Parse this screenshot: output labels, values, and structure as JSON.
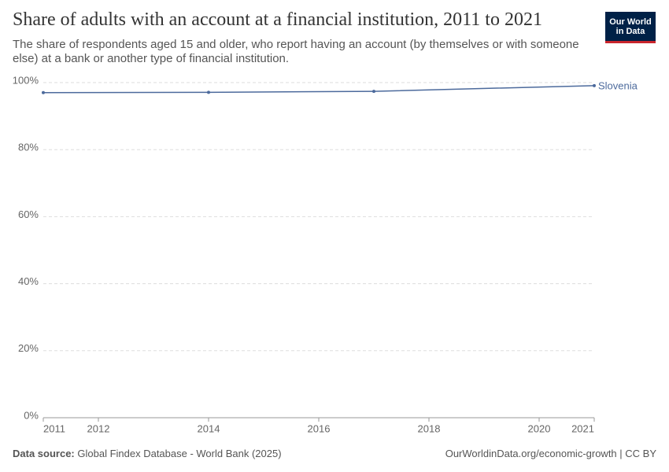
{
  "chart_data": {
    "type": "line",
    "title": "Share of adults with an account at a financial institution, 2011 to 2021",
    "subtitle": "The share of respondents aged 15 and older, who report having an account (by themselves or with someone else) at a bank or another type of financial institution.",
    "logo": [
      "Our World",
      "in Data"
    ],
    "source_label": "Data source:",
    "source": "Global Findex Database - World Bank (2025)",
    "credit": "OurWorldinData.org/economic-growth | CC BY",
    "x": [
      2011,
      2014,
      2017,
      2021
    ],
    "series": [
      {
        "name": "Slovenia",
        "color": "#4c6a9c",
        "values": [
          97,
          97.1,
          97.4,
          99.1
        ]
      }
    ],
    "xlim": [
      2011,
      2021
    ],
    "xticks": [
      2011,
      2012,
      2014,
      2016,
      2018,
      2020,
      2021
    ],
    "ylim": [
      0,
      100
    ],
    "yticks": [
      {
        "value": 0,
        "label": "0%"
      },
      {
        "value": 20,
        "label": "20%"
      },
      {
        "value": 40,
        "label": "40%"
      },
      {
        "value": 60,
        "label": "60%"
      },
      {
        "value": 80,
        "label": "80%"
      },
      {
        "value": 100,
        "label": "100%"
      }
    ],
    "grid": true
  }
}
